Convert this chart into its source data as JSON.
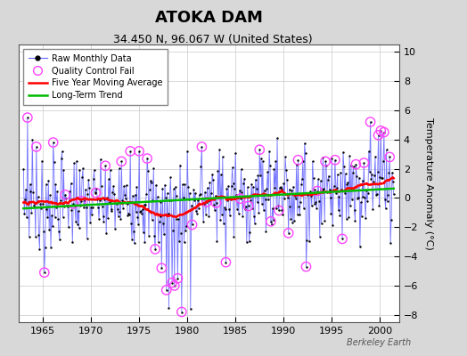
{
  "title": "ATOKA DAM",
  "subtitle": "34.450 N, 96.067 W (United States)",
  "ylabel": "Temperature Anomaly (°C)",
  "watermark": "Berkeley Earth",
  "xlim": [
    1962.5,
    2002.0
  ],
  "ylim": [
    -8.5,
    10.5
  ],
  "yticks": [
    -8,
    -6,
    -4,
    -2,
    0,
    2,
    4,
    6,
    8,
    10
  ],
  "xticks": [
    1965,
    1970,
    1975,
    1980,
    1985,
    1990,
    1995,
    2000
  ],
  "bg_color": "#d8d8d8",
  "plot_bg_color": "#ffffff",
  "raw_line_color": "#6666ff",
  "raw_dot_color": "#000000",
  "qc_fail_color": "#ff44ff",
  "moving_avg_color": "#ff0000",
  "trend_color": "#00bb00",
  "title_fontsize": 13,
  "subtitle_fontsize": 9,
  "tick_fontsize": 8,
  "ylabel_fontsize": 8
}
